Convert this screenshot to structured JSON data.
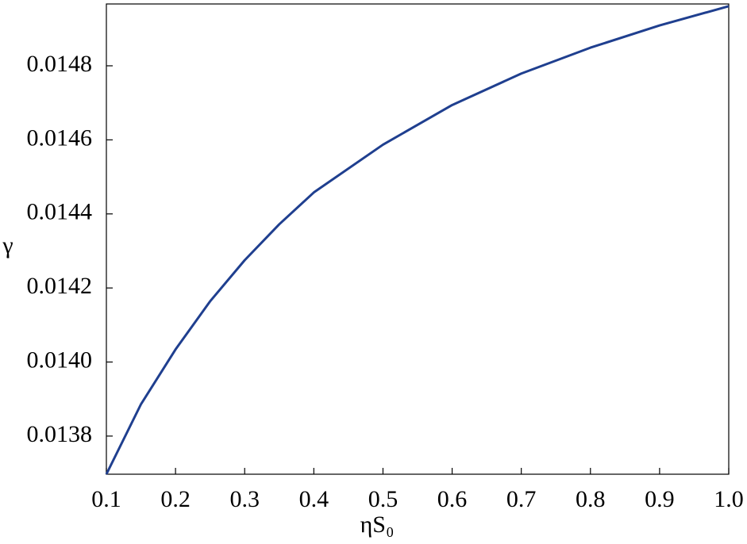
{
  "chart_data": {
    "type": "line",
    "x_label": "ηS₀",
    "y_label": "γ",
    "x": [
      0.1,
      0.15,
      0.2,
      0.25,
      0.3,
      0.35,
      0.4,
      0.5,
      0.6,
      0.7,
      0.8,
      0.9,
      1.0
    ],
    "series": [
      {
        "color": "#1f3f8f",
        "values": [
          0.013697,
          0.013886,
          0.014034,
          0.014164,
          0.014275,
          0.014372,
          0.014458,
          0.014587,
          0.014694,
          0.014779,
          0.014849,
          0.014909,
          0.014961
        ]
      }
    ],
    "xlim": [
      0.1,
      1.0
    ],
    "ylim": [
      0.013697,
      0.014967
    ],
    "xticks": [
      0.1,
      0.2,
      0.3,
      0.4,
      0.5,
      0.6,
      0.7,
      0.8,
      0.9,
      {
        "value": 1.0,
        "label": "1.0"
      }
    ],
    "yticks": [
      {
        "value": 0.0138,
        "label": "0.0138"
      },
      {
        "value": 0.014,
        "label": "0.0140"
      },
      {
        "value": 0.0142,
        "label": "0.0142"
      },
      {
        "value": 0.0144,
        "label": "0.0144"
      },
      {
        "value": 0.0146,
        "label": "0.0146"
      },
      {
        "value": 0.0148,
        "label": "0.0148"
      }
    ],
    "grid": false
  }
}
